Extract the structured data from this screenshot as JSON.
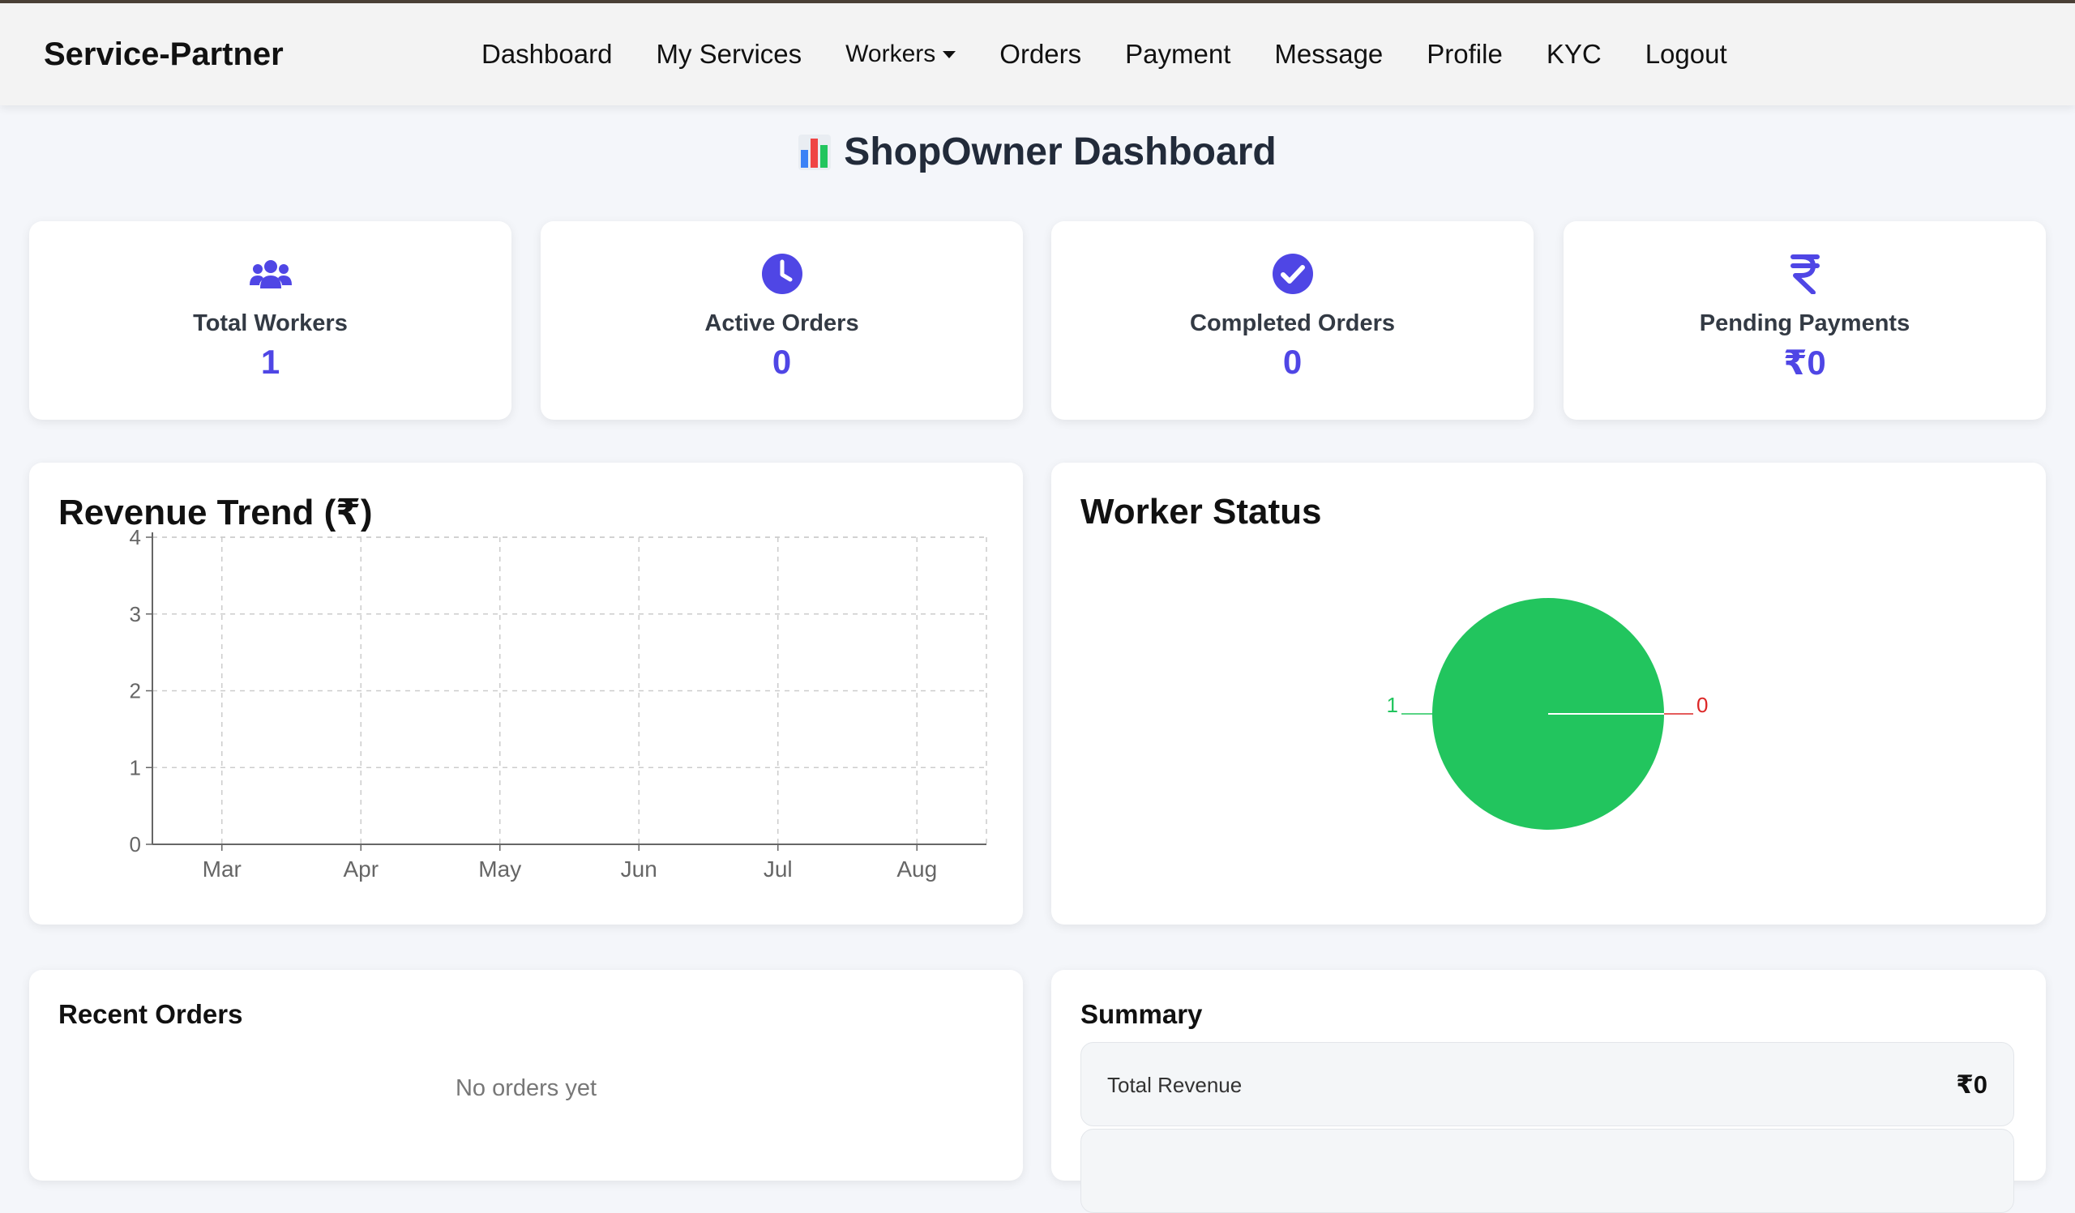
{
  "app": {
    "brand": "Service-Partner"
  },
  "nav": {
    "items": [
      {
        "label": "Dashboard"
      },
      {
        "label": "My Services"
      },
      {
        "label": "Workers",
        "dropdown": true
      },
      {
        "label": "Orders"
      },
      {
        "label": "Payment"
      },
      {
        "label": "Message"
      },
      {
        "label": "Profile"
      },
      {
        "label": "KYC"
      },
      {
        "label": "Logout"
      }
    ]
  },
  "page": {
    "title": "ShopOwner Dashboard",
    "title_icon": "bar-chart-emoji"
  },
  "stats": [
    {
      "label": "Total Workers",
      "value": "1",
      "icon": "users-icon"
    },
    {
      "label": "Active Orders",
      "value": "0",
      "icon": "clock-icon"
    },
    {
      "label": "Completed Orders",
      "value": "0",
      "icon": "check-circle-icon"
    },
    {
      "label": "Pending Payments",
      "value": "₹0",
      "icon": "rupee-icon"
    }
  ],
  "colors": {
    "accent": "#4f46e5",
    "active_worker": "#22c55e",
    "inactive_worker": "#dc2626"
  },
  "revenue_panel": {
    "title": "Revenue Trend (₹)"
  },
  "worker_panel": {
    "title": "Worker Status"
  },
  "recent_orders": {
    "title": "Recent Orders",
    "empty_text": "No orders yet"
  },
  "summary": {
    "title": "Summary",
    "rows": [
      {
        "label": "Total Revenue",
        "value": "₹0"
      }
    ]
  },
  "chart_data": [
    {
      "type": "line",
      "title": "Revenue Trend (₹)",
      "categories": [
        "Mar",
        "Apr",
        "May",
        "Jun",
        "Jul",
        "Aug"
      ],
      "series": [
        {
          "values": [
            0,
            0,
            0,
            0,
            0,
            0
          ]
        }
      ],
      "ylim": [
        0,
        4
      ],
      "yticks": [
        "0",
        "1",
        "2",
        "3",
        "4"
      ],
      "grid": true
    },
    {
      "type": "pie",
      "title": "Worker Status",
      "slices": [
        {
          "value": 1,
          "label": "1",
          "color": "#22c55e"
        },
        {
          "value": 0,
          "label": "0",
          "color": "#dc2626"
        }
      ]
    }
  ]
}
